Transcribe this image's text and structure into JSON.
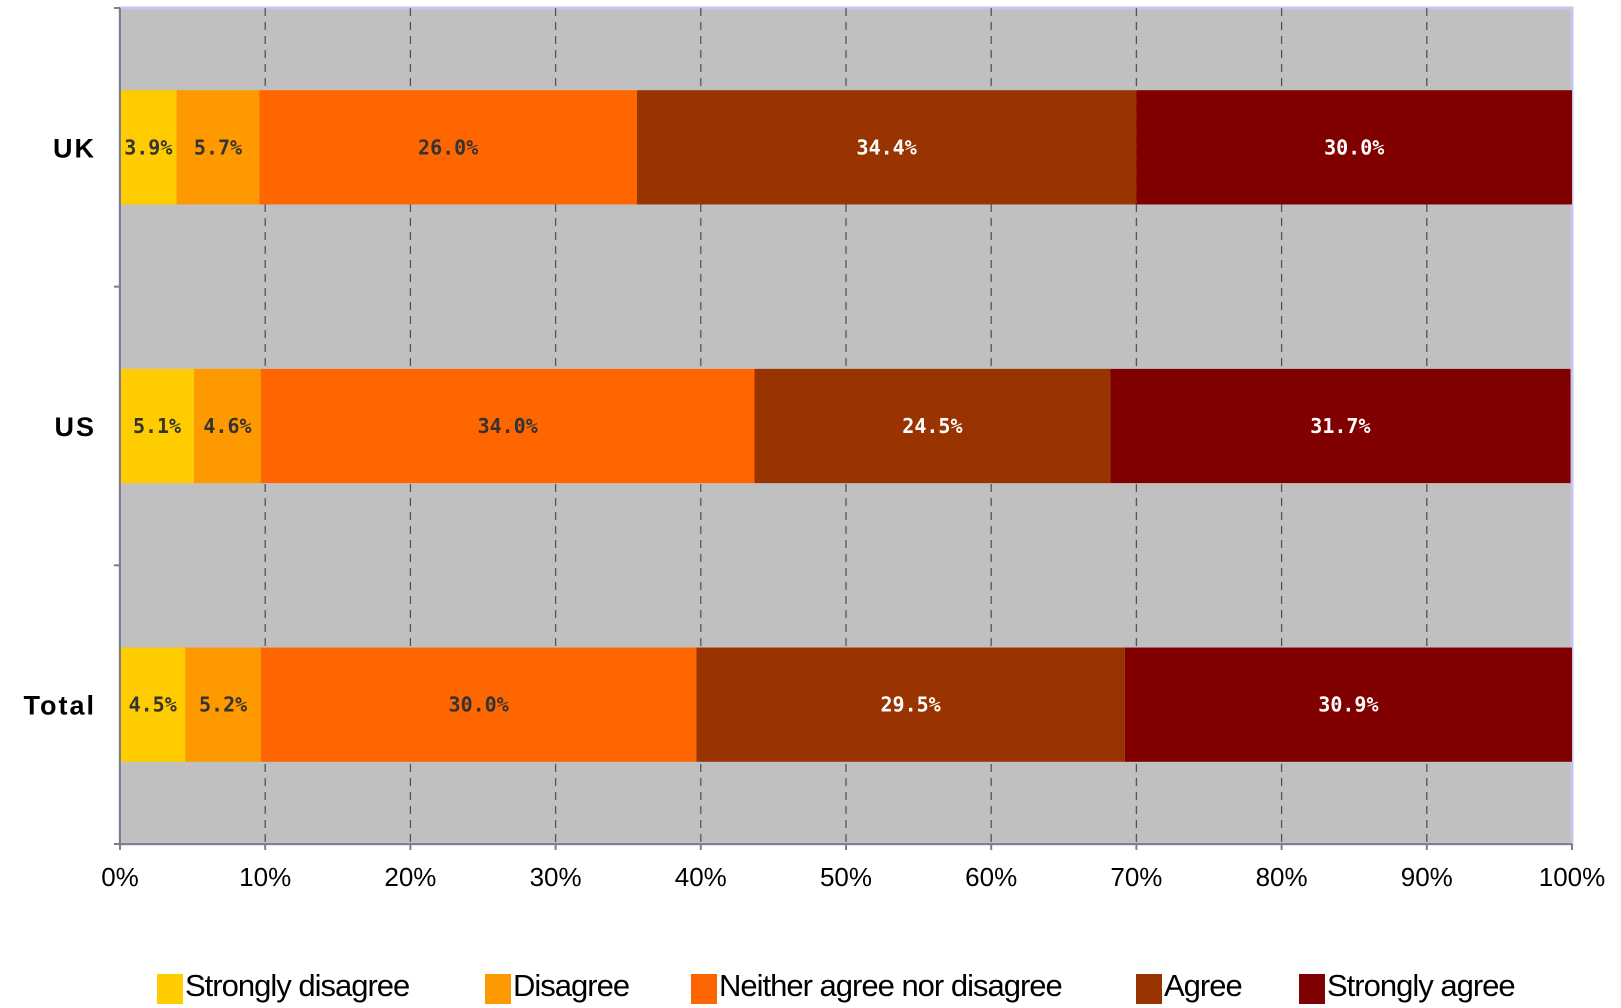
{
  "chart_data": {
    "type": "bar",
    "orientation": "horizontal",
    "stacked": "percent",
    "categories": [
      "UK",
      "US",
      "Total"
    ],
    "series": [
      {
        "name": "Strongly disagree",
        "color": "#FFCC00",
        "values": [
          3.9,
          5.1,
          4.5
        ],
        "labels": [
          "3.9%",
          "5.1%",
          "4.5%"
        ]
      },
      {
        "name": "Disagree",
        "color": "#FF9900",
        "values": [
          5.7,
          4.6,
          5.2
        ],
        "labels": [
          "5.7%",
          "4.6%",
          "5.2%"
        ]
      },
      {
        "name": "Neither agree nor disagree",
        "color": "#FF6600",
        "values": [
          26.0,
          34.0,
          30.0
        ],
        "labels": [
          "26.0%",
          "34.0%",
          "30.0%"
        ]
      },
      {
        "name": "Agree",
        "color": "#993300",
        "values": [
          34.4,
          24.5,
          29.5
        ],
        "labels": [
          "34.4%",
          "24.5%",
          "29.5%"
        ]
      },
      {
        "name": "Strongly agree",
        "color": "#800000",
        "values": [
          30.0,
          31.7,
          30.9
        ],
        "labels": [
          "30.0%",
          "31.7%",
          "30.9%"
        ]
      }
    ],
    "x_ticks": [
      "0%",
      "10%",
      "20%",
      "30%",
      "40%",
      "50%",
      "60%",
      "70%",
      "80%",
      "90%",
      "100%"
    ],
    "xlim": [
      0,
      100
    ],
    "grid": "vertical dashed",
    "legend": "bottom",
    "plot_background": "#C0C0C0"
  }
}
